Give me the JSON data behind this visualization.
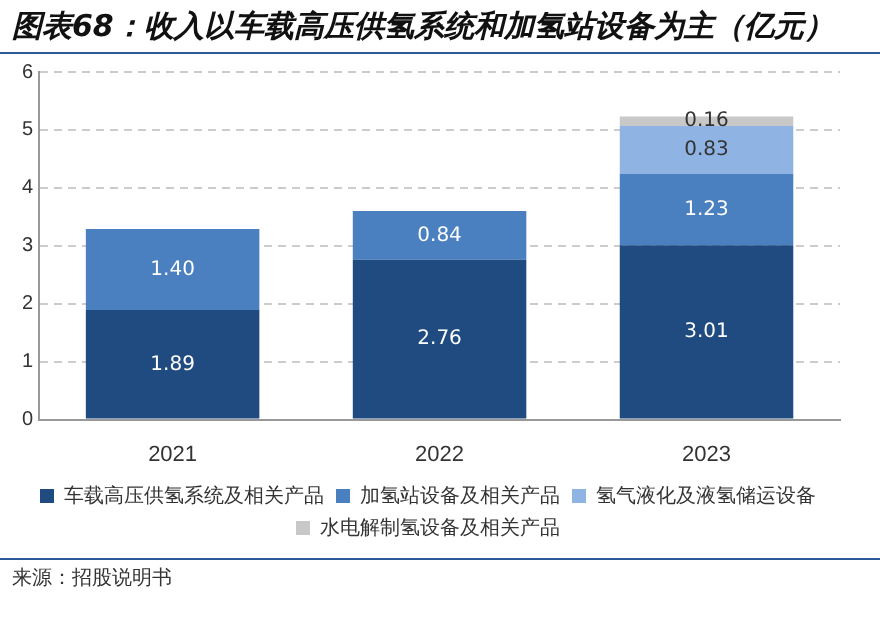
{
  "chart_data": {
    "type": "bar",
    "title": "图表68：收入以车载高压供氢系统和加氢站设备为主（亿元）",
    "categories": [
      "2021",
      "2022",
      "2023"
    ],
    "stacked": true,
    "legend": "bottom",
    "grid": "y",
    "ylim": [
      0,
      6
    ],
    "yticks": [
      0,
      1,
      2,
      3,
      4,
      5,
      6
    ],
    "series": [
      {
        "name": "车载高压供氢系统及相关产品",
        "color": "#1f4b80",
        "values": [
          1.89,
          2.76,
          3.01
        ],
        "value_labels": [
          "1.89",
          "2.76",
          "3.01"
        ]
      },
      {
        "name": "加氢站设备及相关产品",
        "color": "#4a7fc0",
        "values": [
          1.4,
          0.84,
          1.23
        ],
        "value_labels": [
          "1.40",
          "0.84",
          "1.23"
        ]
      },
      {
        "name": "氢气液化及液氢储运设备",
        "color": "#8fb4e3",
        "values": [
          null,
          null,
          0.83
        ],
        "value_labels": [
          null,
          null,
          "0.83"
        ]
      },
      {
        "name": "水电解制氢设备及相关产品",
        "color": "#c8c8c8",
        "values": [
          null,
          null,
          0.16
        ],
        "value_labels": [
          null,
          null,
          "0.16"
        ]
      }
    ],
    "annotations": [
      "来源：招股说明书"
    ]
  }
}
